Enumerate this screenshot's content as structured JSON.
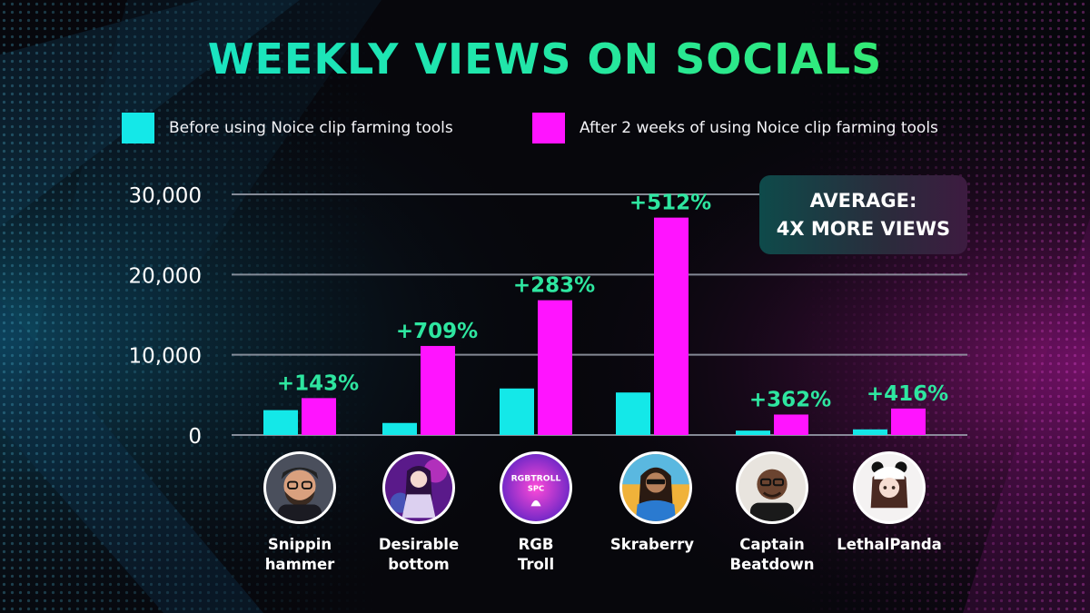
{
  "chart_data": {
    "type": "bar",
    "title": "WEEKLY VIEWS ON SOCIALS",
    "categories": [
      "Snippin\nhammer",
      "Desirable\nbottom",
      "RGB\nTroll",
      "Skraberry",
      "Captain\nBeatdown",
      "LethalPanda"
    ],
    "series": [
      {
        "name": "Before using Noice clip farming tools",
        "color": "#14e8e8",
        "values": [
          3100,
          1500,
          5800,
          5300,
          550,
          700
        ]
      },
      {
        "name": "After 2 weeks of using Noice clip farming tools",
        "color": "#ff14ff",
        "values": [
          4600,
          11100,
          16800,
          27100,
          2550,
          3300
        ]
      }
    ],
    "bar_labels": [
      "+143%",
      "+709%",
      "+283%",
      "+512%",
      "+362%",
      "+416%"
    ],
    "label_color": "#2ee6a0",
    "yticks": [
      "0",
      "10,000",
      "20,000",
      "30,000"
    ],
    "ytick_values": [
      0,
      10000,
      20000,
      30000
    ],
    "ylim": [
      0,
      30000
    ],
    "grid": true,
    "legend": "top",
    "xlabel": "",
    "ylabel": ""
  },
  "callout": {
    "line1": "AVERAGE:",
    "line2": "4X MORE VIEWS"
  },
  "avatars": [
    "bearded-man-glasses-avatar",
    "anime-girl-avatar",
    "rgb-troll-logo-avatar",
    "woman-sunglasses-avatar",
    "man-glasses-avatar",
    "panda-girl-avatar"
  ]
}
